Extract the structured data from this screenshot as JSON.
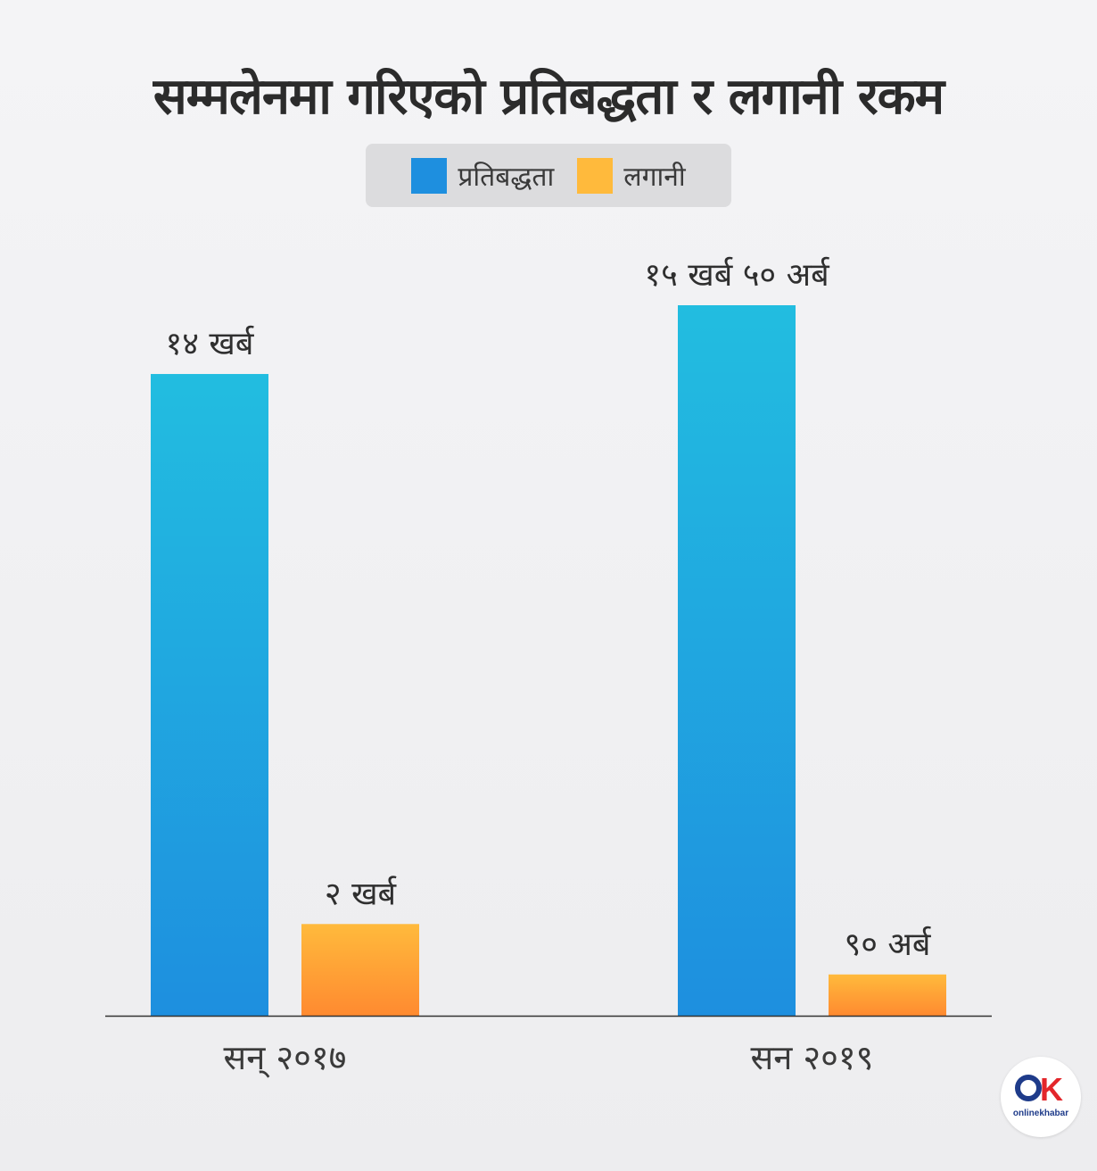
{
  "chart_data": {
    "type": "bar",
    "title": "सम्मलेनमा गरिएको प्रतिबद्धता र लगानी रकम",
    "categories": [
      "सन्  २०१७",
      "सन  २०१९"
    ],
    "legend_position": "top-center",
    "grid": false,
    "ylim": [
      0,
      1550
    ],
    "unit": "अर्ब",
    "series": [
      {
        "name": "प्रतिबद्धता",
        "color": "#1e8fdf",
        "color_top": "#22bde0",
        "values": [
          1400,
          1550
        ],
        "labels": [
          "१४  खर्ब",
          "१५  खर्ब  ५०  अर्ब"
        ]
      },
      {
        "name": "लगानी",
        "color": "#ff8a30",
        "color_top": "#ffba3c",
        "values": [
          200,
          90
        ],
        "labels": [
          "२  खर्ब",
          "९०  अर्ब"
        ]
      }
    ]
  },
  "logo": {
    "mark_o": "O",
    "mark_k": "K",
    "text": "onlinekhabar"
  }
}
